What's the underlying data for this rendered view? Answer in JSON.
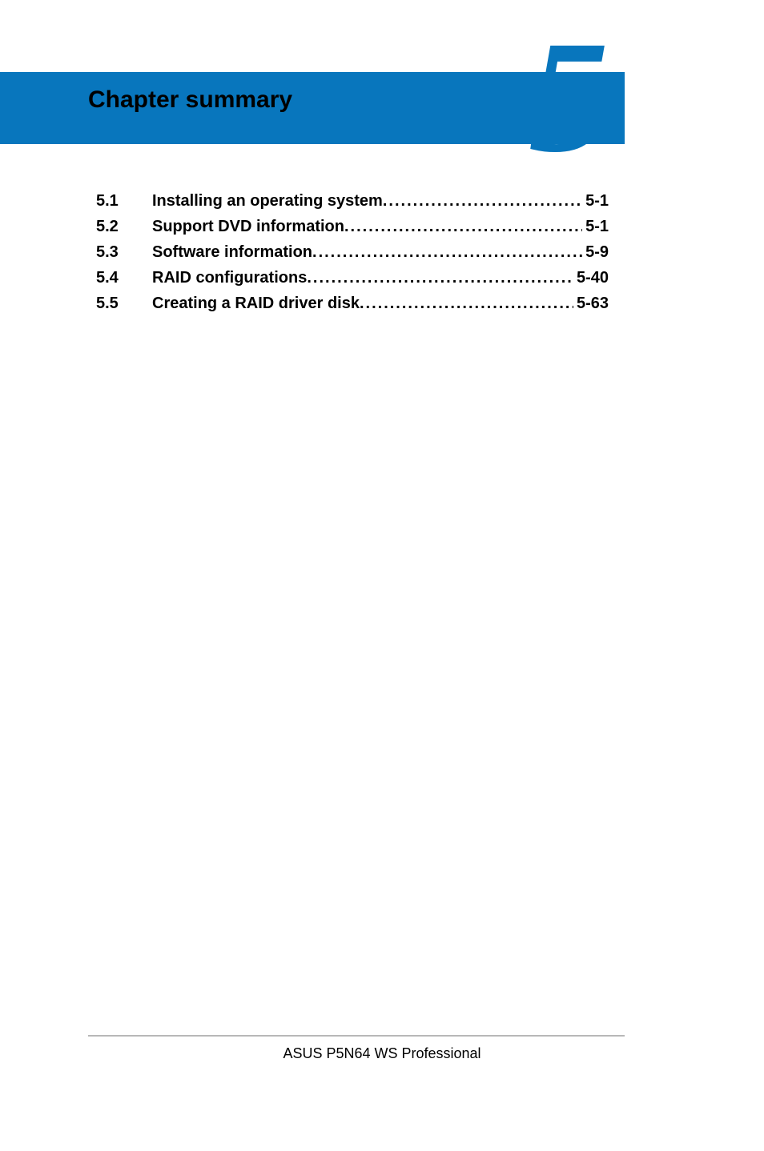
{
  "header": {
    "title": "Chapter summary",
    "chapter_number": "5",
    "band_color": "#0876bd",
    "number_color": "#0876bd",
    "title_color": "#000000",
    "title_fontsize": 30,
    "number_fontsize": 200
  },
  "toc": {
    "font_color": "#000000",
    "font_weight": "bold",
    "fontsize": 20,
    "entries": [
      {
        "num": "5.1",
        "title": "Installing an operating system",
        "page": "5-1"
      },
      {
        "num": "5.2",
        "title": "Support DVD information",
        "page": "5-1"
      },
      {
        "num": "5.3",
        "title": "Software information",
        "page": "5-9"
      },
      {
        "num": "5.4",
        "title": "RAID configurations",
        "page": "5-40"
      },
      {
        "num": "5.5",
        "title": "Creating a RAID driver disk",
        "page": "5-63"
      }
    ]
  },
  "footer": {
    "text": "ASUS P5N64 WS Professional",
    "rule_color": "#b8b8b8",
    "fontsize": 18
  },
  "page_background": "#ffffff"
}
